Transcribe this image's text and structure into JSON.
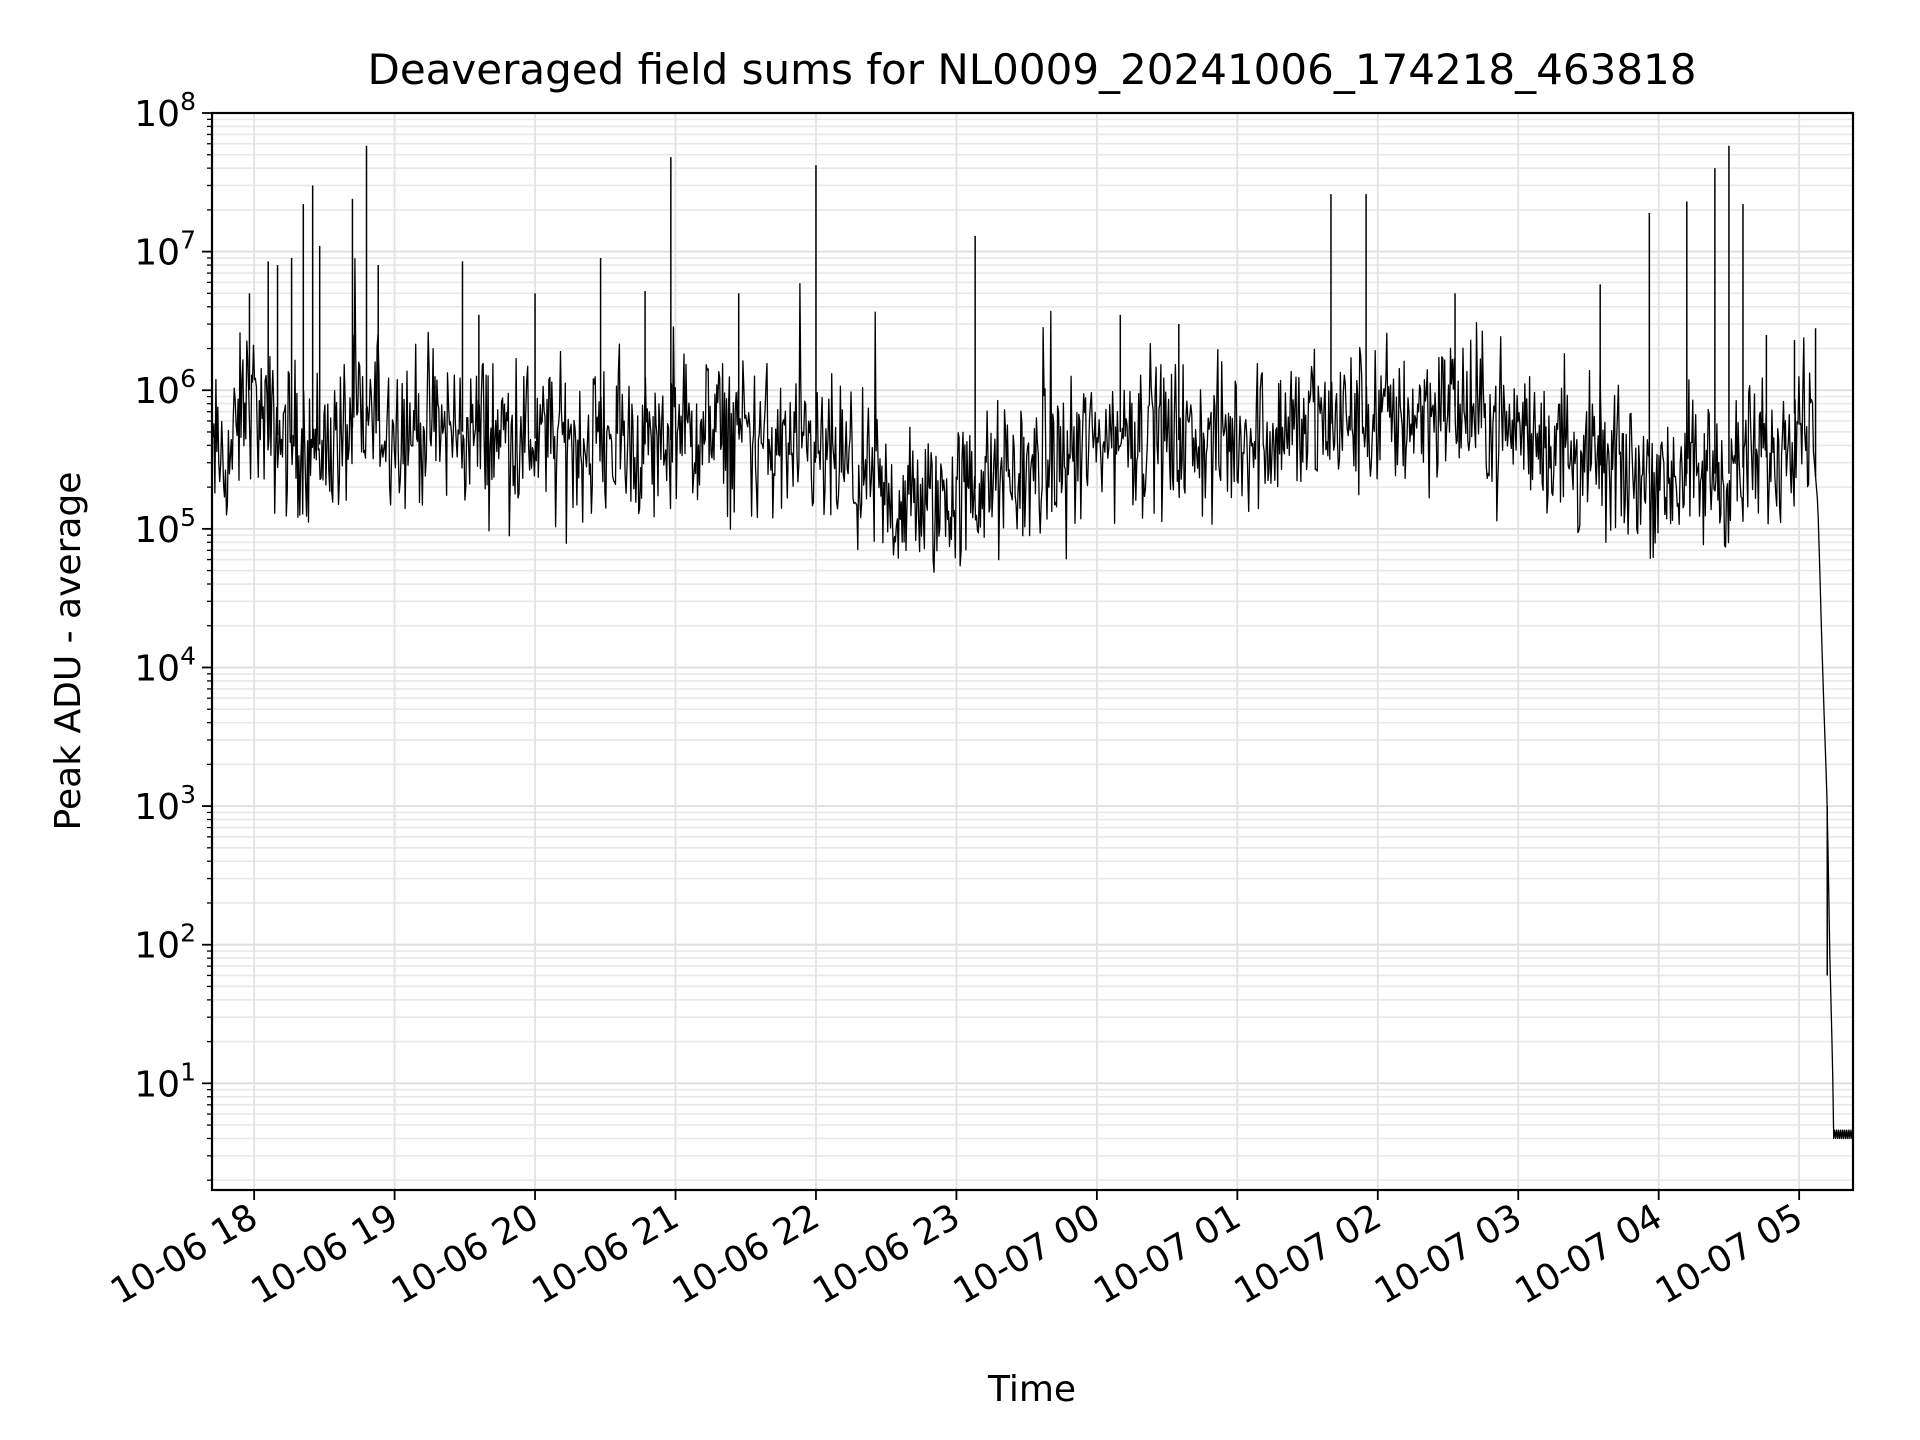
{
  "chart_data": {
    "type": "line",
    "title": "Deaveraged field sums for NL0009_20241006_174218_463818",
    "xlabel": "Time",
    "ylabel": "Peak ADU - average",
    "yscale": "log",
    "ylim": [
      1.7,
      100000000
    ],
    "xlim": [
      "2024-10-06 17:42",
      "2024-10-07 05:23"
    ],
    "grid": true,
    "line_color": "#000000",
    "x_ticks": [
      "10-06 18",
      "10-06 19",
      "10-06 20",
      "10-06 21",
      "10-06 22",
      "10-06 23",
      "10-07 00",
      "10-07 01",
      "10-07 02",
      "10-07 03",
      "10-07 04",
      "10-07 05"
    ],
    "y_ticks": [
      {
        "value": 10,
        "base": "10",
        "exp": "1"
      },
      {
        "value": 100,
        "base": "10",
        "exp": "2"
      },
      {
        "value": 1000,
        "base": "10",
        "exp": "3"
      },
      {
        "value": 10000,
        "base": "10",
        "exp": "4"
      },
      {
        "value": 100000,
        "base": "10",
        "exp": "5"
      },
      {
        "value": 1000000,
        "base": "10",
        "exp": "6"
      },
      {
        "value": 10000000,
        "base": "10",
        "exp": "7"
      },
      {
        "value": 100000000,
        "base": "10",
        "exp": "8"
      }
    ],
    "series": [
      {
        "x": [
          "2024-10-06 17:42",
          "2024-10-06 17:48",
          "2024-10-06 17:52",
          "2024-10-06 17:55",
          "2024-10-06 17:58",
          "2024-10-06 18:05",
          "2024-10-06 18:15",
          "2024-10-06 18:25",
          "2024-10-06 18:35",
          "2024-10-06 18:45",
          "2024-10-06 18:55",
          "2024-10-06 19:10",
          "2024-10-06 19:30",
          "2024-10-06 19:50",
          "2024-10-06 20:10",
          "2024-10-06 20:30",
          "2024-10-06 20:50",
          "2024-10-06 21:10",
          "2024-10-06 21:30",
          "2024-10-06 21:50",
          "2024-10-06 22:10",
          "2024-10-06 22:30",
          "2024-10-06 22:50",
          "2024-10-06 23:10",
          "2024-10-06 23:30",
          "2024-10-06 23:50",
          "2024-10-07 00:10",
          "2024-10-07 00:30",
          "2024-10-07 00:50",
          "2024-10-07 01:10",
          "2024-10-07 01:30",
          "2024-10-07 01:50",
          "2024-10-07 02:10",
          "2024-10-07 02:30",
          "2024-10-07 02:50",
          "2024-10-07 03:10",
          "2024-10-07 03:30",
          "2024-10-07 03:50",
          "2024-10-07 04:10",
          "2024-10-07 04:30",
          "2024-10-07 04:50",
          "2024-10-07 05:00",
          "2024-10-07 05:05",
          "2024-10-07 05:08",
          "2024-10-07 05:10",
          "2024-10-07 05:12",
          "2024-10-07 05:13",
          "2024-10-07 05:14",
          "2024-10-07 05:15",
          "2024-10-07 05:18",
          "2024-10-07 05:23"
        ],
        "y": [
          350000,
          300000,
          400000,
          800000,
          1000000,
          500000,
          450000,
          400000,
          420000,
          600000,
          600000,
          550000,
          500000,
          500000,
          400000,
          450000,
          400000,
          500000,
          480000,
          350000,
          300000,
          150000,
          150000,
          200000,
          250000,
          350000,
          500000,
          450000,
          400000,
          500000,
          550000,
          600000,
          650000,
          800000,
          600000,
          450000,
          300000,
          250000,
          250000,
          250000,
          350000,
          800000,
          600000,
          150000,
          10000,
          1000,
          100,
          20,
          4,
          4,
          4
        ]
      }
    ],
    "spikes": [
      {
        "x": "2024-10-06 17:58",
        "y": 5000000
      },
      {
        "x": "2024-10-06 18:06",
        "y": 8500000
      },
      {
        "x": "2024-10-06 18:10",
        "y": 8000000
      },
      {
        "x": "2024-10-06 18:16",
        "y": 9000000
      },
      {
        "x": "2024-10-06 18:21",
        "y": 22000000
      },
      {
        "x": "2024-10-06 18:25",
        "y": 30000000
      },
      {
        "x": "2024-10-06 18:28",
        "y": 11000000
      },
      {
        "x": "2024-10-06 18:42",
        "y": 24000000
      },
      {
        "x": "2024-10-06 18:48",
        "y": 58000000
      },
      {
        "x": "2024-10-06 18:53",
        "y": 8000000
      },
      {
        "x": "2024-10-06 19:29",
        "y": 8500000
      },
      {
        "x": "2024-10-06 19:36",
        "y": 3500000
      },
      {
        "x": "2024-10-06 20:00",
        "y": 5000000
      },
      {
        "x": "2024-10-06 20:28",
        "y": 9000000
      },
      {
        "x": "2024-10-06 20:47",
        "y": 5200000
      },
      {
        "x": "2024-10-06 20:58",
        "y": 48000000
      },
      {
        "x": "2024-10-06 21:27",
        "y": 5000000
      },
      {
        "x": "2024-10-06 22:00",
        "y": 42000000
      },
      {
        "x": "2024-10-06 23:08",
        "y": 13000000
      },
      {
        "x": "2024-10-07 00:10",
        "y": 3500000
      },
      {
        "x": "2024-10-07 00:35",
        "y": 3000000
      },
      {
        "x": "2024-10-07 01:40",
        "y": 26000000
      },
      {
        "x": "2024-10-07 01:55",
        "y": 26000000
      },
      {
        "x": "2024-10-07 02:33",
        "y": 5000000
      },
      {
        "x": "2024-10-07 03:35",
        "y": 5800000
      },
      {
        "x": "2024-10-07 03:56",
        "y": 19000000
      },
      {
        "x": "2024-10-07 04:12",
        "y": 23000000
      },
      {
        "x": "2024-10-07 04:24",
        "y": 40000000
      },
      {
        "x": "2024-10-07 04:30",
        "y": 58000000
      },
      {
        "x": "2024-10-07 04:36",
        "y": 22000000
      },
      {
        "x": "2024-10-07 04:46",
        "y": 2500000
      },
      {
        "x": "2024-10-07 04:58",
        "y": 2300000
      },
      {
        "x": "2024-10-07 05:07",
        "y": 2800000
      },
      {
        "x": "2024-10-07 05:12",
        "y": 60
      }
    ]
  }
}
